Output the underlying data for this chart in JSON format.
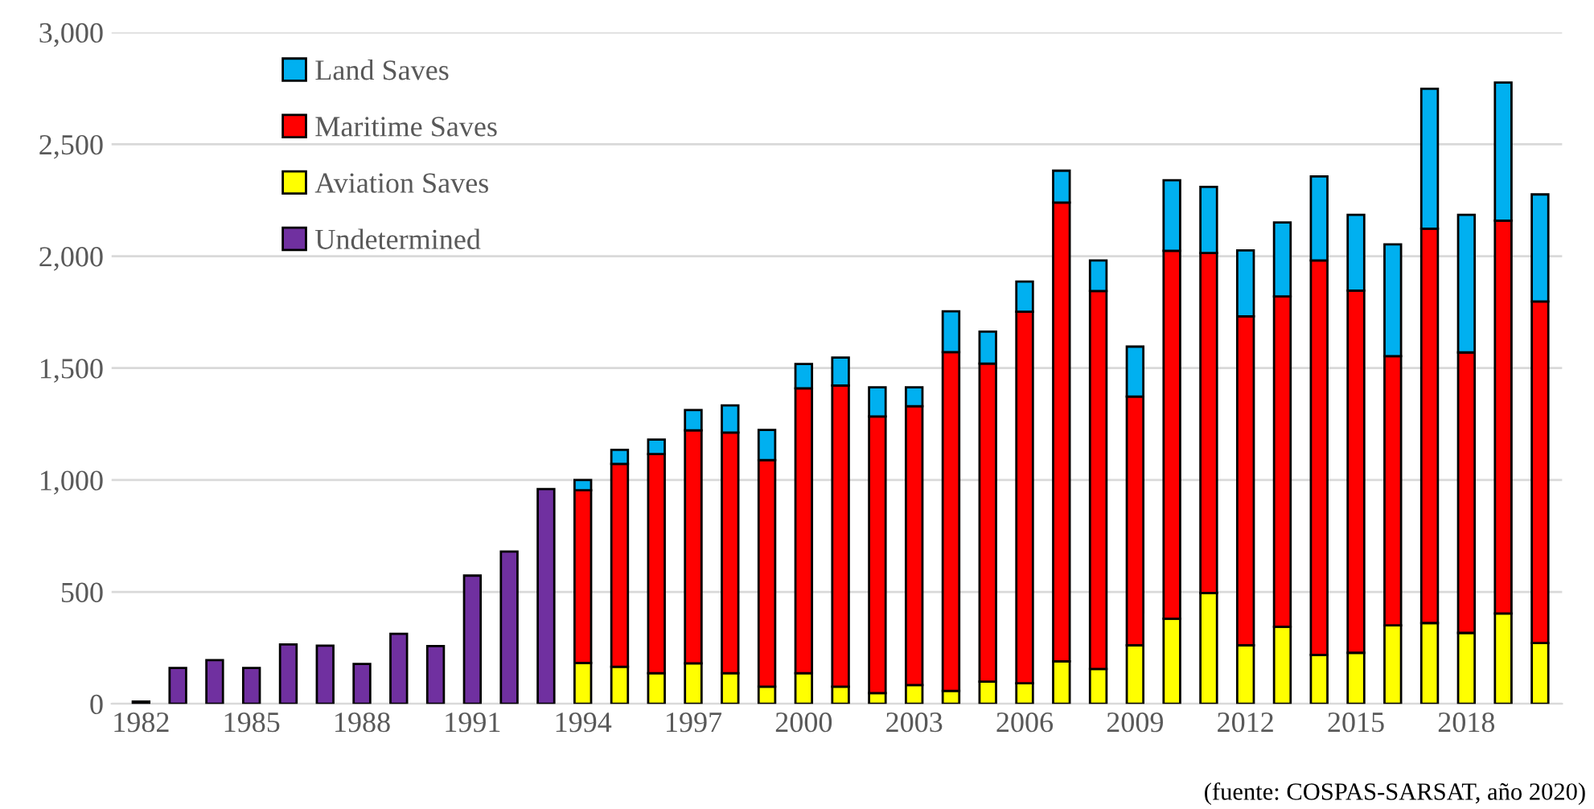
{
  "chart_data": {
    "type": "bar",
    "stacked": true,
    "categories": [
      "1982",
      null,
      null,
      "1985",
      null,
      null,
      "1988",
      null,
      null,
      "1991",
      null,
      null,
      "1994",
      null,
      null,
      "1997",
      null,
      null,
      "2000",
      null,
      null,
      "2003",
      null,
      null,
      "2006",
      null,
      null,
      "2009",
      null,
      null,
      "2012",
      null,
      null,
      "2015",
      null,
      null,
      "2018",
      null,
      null
    ],
    "series": [
      {
        "name": "Undetermined",
        "color": "#7030a0",
        "values": [
          10,
          160,
          195,
          160,
          265,
          260,
          178,
          313,
          258,
          573,
          680,
          960,
          null,
          null,
          null,
          null,
          null,
          null,
          null,
          null,
          null,
          null,
          null,
          null,
          null,
          null,
          null,
          null,
          null,
          null,
          null,
          null,
          null,
          null,
          null,
          null,
          null,
          null,
          null
        ]
      },
      {
        "name": "Aviation Saves",
        "color": "#ffff00",
        "values": [
          null,
          null,
          null,
          null,
          null,
          null,
          null,
          null,
          null,
          null,
          null,
          null,
          183,
          166,
          137,
          181,
          137,
          77,
          137,
          77,
          48,
          84,
          58,
          99,
          92,
          190,
          156,
          262,
          380,
          495,
          262,
          344,
          219,
          228,
          351,
          361,
          317,
          404,
          272
        ]
      },
      {
        "name": "Maritime Saves",
        "color": "#ff0000",
        "values": [
          null,
          null,
          null,
          null,
          null,
          null,
          null,
          null,
          null,
          null,
          null,
          null,
          771,
          906,
          979,
          1041,
          1075,
          1012,
          1273,
          1345,
          1236,
          1246,
          1513,
          1421,
          1660,
          2050,
          1688,
          1111,
          1644,
          1519,
          1469,
          1476,
          1762,
          1618,
          1202,
          1762,
          1253,
          1755,
          1526
        ]
      },
      {
        "name": "Land Saves",
        "color": "#00b0f0",
        "values": [
          null,
          null,
          null,
          null,
          null,
          null,
          null,
          null,
          null,
          null,
          null,
          null,
          46,
          63,
          65,
          91,
          121,
          135,
          108,
          125,
          130,
          84,
          183,
          143,
          135,
          142,
          137,
          223,
          315,
          296,
          295,
          331,
          375,
          339,
          500,
          625,
          615,
          617,
          478
        ]
      }
    ],
    "ylim": [
      0,
      3000
    ],
    "yticks": [
      {
        "value": 0,
        "label": "0"
      },
      {
        "value": 500,
        "label": "500"
      },
      {
        "value": 1000,
        "label": "1,000"
      },
      {
        "value": 1500,
        "label": "1,500"
      },
      {
        "value": 2000,
        "label": "2,000"
      },
      {
        "value": 2500,
        "label": "2,500"
      },
      {
        "value": 3000,
        "label": "3,000"
      }
    ],
    "grid": "y",
    "legend": "top left",
    "annotations": [
      "(fuente: COSPAS-SARSAT, año 2020)"
    ]
  }
}
